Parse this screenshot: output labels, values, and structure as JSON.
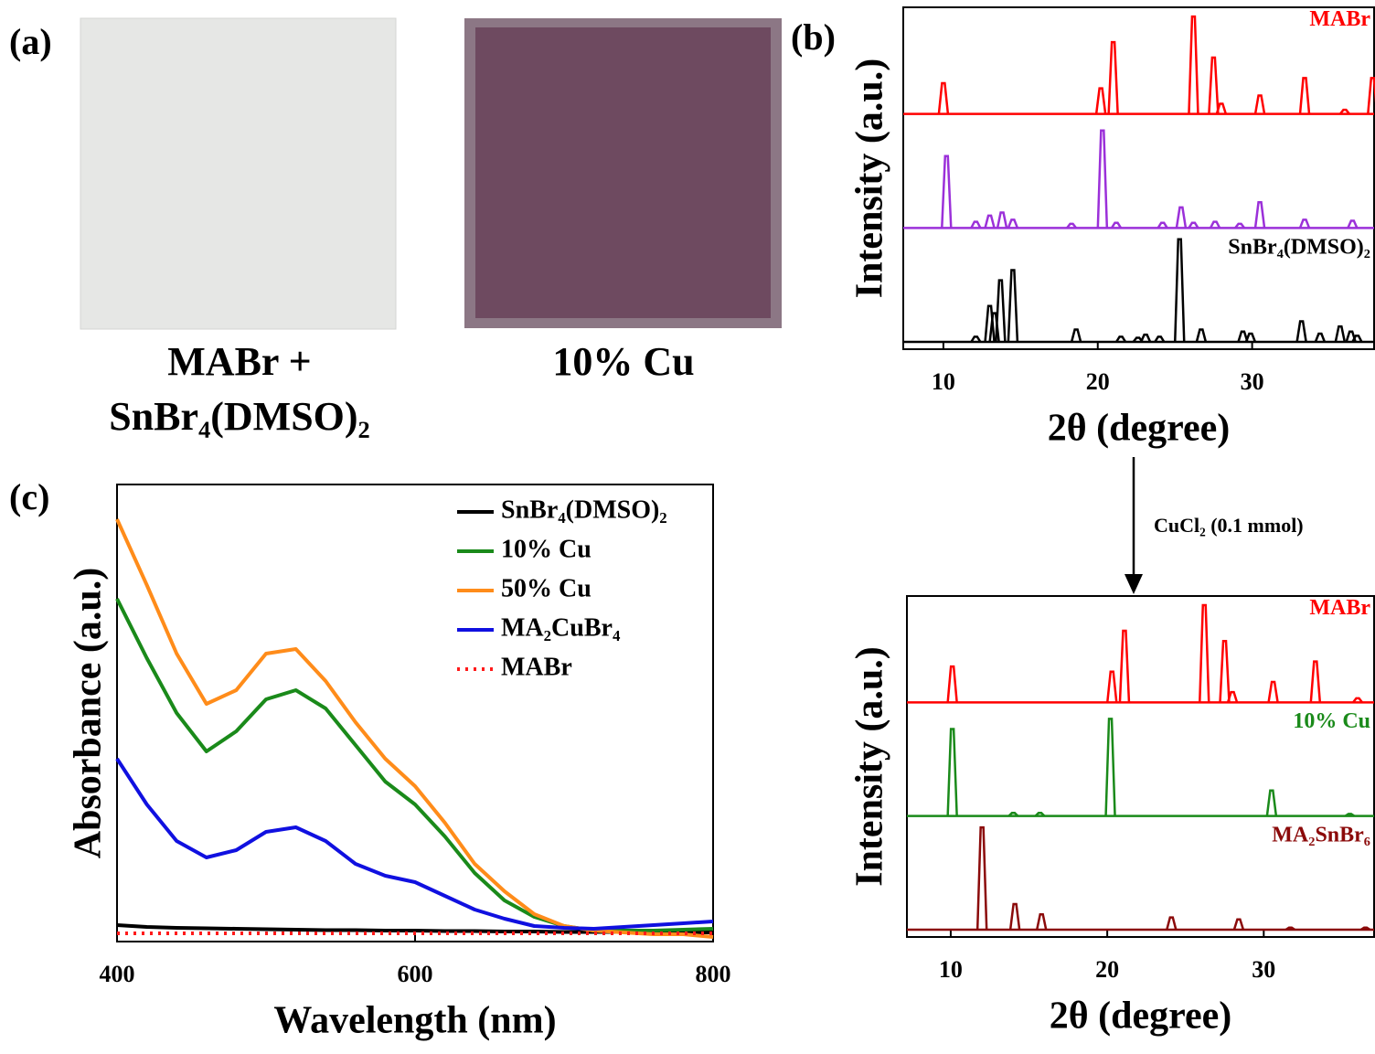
{
  "panel_a": {
    "label": "(a)",
    "caption_left": [
      "MABr +",
      "SnBr₄(DMSO)₂"
    ],
    "caption_right": "10% Cu"
  },
  "arrow_label": "CuCl₂ (0.1 mmol)",
  "chart_data": [
    {
      "type": "peaks",
      "panel_label": "(b)",
      "xlabel": "2θ (degree)",
      "ylabel": "Intensity (a.u.)",
      "xlim": [
        7.4,
        37.9
      ],
      "xticks": [
        10,
        20,
        30
      ],
      "ylim": [
        0,
        100
      ],
      "series": [
        {
          "name": "MABr",
          "color": "#ff0000",
          "x": [
            10.0,
            20.2,
            21.0,
            26.2,
            27.5,
            28.0,
            30.5,
            33.4,
            36.0,
            37.8
          ],
          "values": [
            30,
            25,
            70,
            95,
            55,
            10,
            18,
            35,
            4,
            35
          ]
        },
        {
          "color": "#9b30d9",
          "x": [
            10.2,
            12.1,
            13.0,
            13.8,
            14.5,
            18.3,
            20.3,
            21.2,
            24.2,
            25.4,
            26.2,
            27.6,
            29.2,
            30.5,
            33.4,
            36.5
          ],
          "values": [
            70,
            6,
            12,
            15,
            8,
            4,
            95,
            5,
            5,
            20,
            5,
            6,
            4,
            25,
            8,
            7
          ]
        },
        {
          "name": "SnBr₄(DMSO)₂",
          "color": "#000000",
          "x": [
            12.1,
            13.0,
            13.3,
            13.7,
            14.5,
            18.6,
            21.5,
            22.6,
            23.1,
            24.0,
            25.3,
            26.7,
            29.4,
            29.9,
            33.2,
            34.4,
            35.7,
            36.4,
            36.8
          ],
          "values": [
            5,
            35,
            28,
            60,
            70,
            12,
            5,
            4,
            7,
            5,
            100,
            12,
            10,
            8,
            20,
            8,
            15,
            10,
            6
          ]
        }
      ]
    },
    {
      "type": "peaks",
      "xlabel": "2θ (degree)",
      "ylabel": "Intensity (a.u.)",
      "xlim": [
        7.2,
        37.05
      ],
      "xticks": [
        10,
        20,
        30
      ],
      "ylim": [
        0,
        100
      ],
      "series": [
        {
          "name": "MABr",
          "color": "#ff0000",
          "x": [
            10.1,
            20.3,
            21.1,
            26.2,
            27.5,
            28.0,
            30.6,
            33.3,
            36.0
          ],
          "values": [
            35,
            30,
            70,
            95,
            60,
            10,
            20,
            40,
            4
          ]
        },
        {
          "name": "10% Cu",
          "color": "#1a8a1a",
          "x": [
            10.1,
            14.0,
            15.7,
            20.2,
            30.5,
            35.5
          ],
          "values": [
            85,
            3,
            3,
            95,
            25,
            2
          ]
        },
        {
          "name": "MA₂SnBr₆",
          "color": "#8b0a0a",
          "x": [
            12.0,
            14.1,
            15.8,
            24.1,
            28.4,
            31.7,
            36.5
          ],
          "values": [
            100,
            25,
            15,
            12,
            10,
            2,
            2
          ]
        }
      ]
    },
    {
      "type": "line",
      "panel_label": "(c)",
      "xlabel": "Wavelength (nm)",
      "ylabel": "Absorbance (a.u.)",
      "xlim": [
        400,
        800
      ],
      "xticks": [
        400,
        600,
        800
      ],
      "ylim": [
        0,
        1
      ],
      "legend": "upper right",
      "x": [
        400,
        420,
        440,
        460,
        480,
        500,
        520,
        540,
        560,
        580,
        600,
        620,
        640,
        660,
        680,
        700,
        720,
        740,
        760,
        780,
        800
      ],
      "series": [
        {
          "name": "SnBr₄(DMSO)₂",
          "color": "#000000",
          "values": [
            0.036,
            0.032,
            0.03,
            0.029,
            0.028,
            0.027,
            0.026,
            0.025,
            0.025,
            0.024,
            0.024,
            0.023,
            0.023,
            0.022,
            0.022,
            0.021,
            0.021,
            0.021,
            0.02,
            0.02,
            0.02
          ]
        },
        {
          "name": "10% Cu",
          "color": "#1a8a1a",
          "values": [
            0.75,
            0.62,
            0.5,
            0.416,
            0.46,
            0.53,
            0.55,
            0.51,
            0.43,
            0.35,
            0.3,
            0.23,
            0.15,
            0.09,
            0.054,
            0.034,
            0.024,
            0.024,
            0.024,
            0.026,
            0.028
          ]
        },
        {
          "name": "50% Cu",
          "color": "#ff8c1a",
          "values": [
            0.924,
            0.78,
            0.63,
            0.52,
            0.55,
            0.63,
            0.64,
            0.57,
            0.48,
            0.4,
            0.34,
            0.26,
            0.17,
            0.11,
            0.06,
            0.034,
            0.024,
            0.02,
            0.016,
            0.016,
            0.01
          ]
        },
        {
          "name": "MA₂CuBr₄",
          "color": "#1010e0",
          "values": [
            0.4,
            0.3,
            0.22,
            0.184,
            0.2,
            0.24,
            0.25,
            0.22,
            0.17,
            0.144,
            0.13,
            0.1,
            0.07,
            0.05,
            0.034,
            0.03,
            0.028,
            0.032,
            0.036,
            0.04,
            0.044
          ]
        },
        {
          "name": "MABr",
          "color": "#ff1a1a",
          "linestyle": "dotted",
          "values": [
            0.018,
            0.018,
            0.018,
            0.018,
            0.018,
            0.018,
            0.018,
            0.018,
            0.018,
            0.018,
            0.018,
            0.018,
            0.018,
            0.018,
            0.018,
            0.018,
            0.018,
            0.018,
            0.018,
            0.018,
            0.018
          ]
        }
      ]
    }
  ]
}
